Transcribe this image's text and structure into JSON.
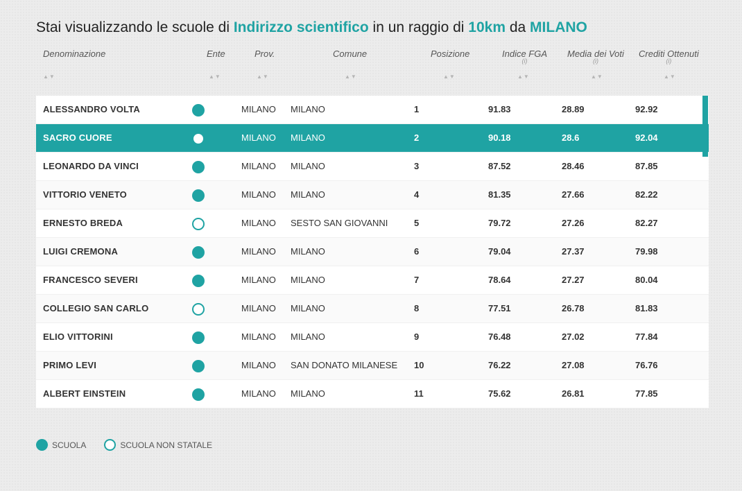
{
  "title": {
    "prefix": "Stai visualizzando le scuole di ",
    "indirizzo": "Indirizzo scientifico",
    "middle": " in un raggio di ",
    "raggio": "10km",
    "connector": " da ",
    "citta": "MILANO"
  },
  "columns": {
    "denominazione": "Denominazione",
    "ente": "Ente",
    "prov": "Prov.",
    "comune": "Comune",
    "posizione": "Posizione",
    "fga": "Indice FGA",
    "media": "Media dei Voti",
    "crediti": "Crediti Ottenuti",
    "info": "(i)",
    "sort_up": "▲",
    "sort_down": "▼"
  },
  "rows": [
    {
      "name": "ALESSANDRO VOLTA",
      "ente": "scuola",
      "prov": "MILANO",
      "comune": "MILANO",
      "pos": "1",
      "fga": "91.83",
      "media": "28.89",
      "crediti": "92.92"
    },
    {
      "name": "SACRO CUORE",
      "ente": "scuola",
      "prov": "MILANO",
      "comune": "MILANO",
      "pos": "2",
      "fga": "90.18",
      "media": "28.6",
      "crediti": "92.04"
    },
    {
      "name": "LEONARDO DA VINCI",
      "ente": "scuola",
      "prov": "MILANO",
      "comune": "MILANO",
      "pos": "3",
      "fga": "87.52",
      "media": "28.46",
      "crediti": "87.85"
    },
    {
      "name": "VITTORIO VENETO",
      "ente": "scuola",
      "prov": "MILANO",
      "comune": "MILANO",
      "pos": "4",
      "fga": "81.35",
      "media": "27.66",
      "crediti": "82.22"
    },
    {
      "name": "ERNESTO BREDA",
      "ente": "non-statale",
      "prov": "MILANO",
      "comune": "SESTO SAN GIOVANNI",
      "pos": "5",
      "fga": "79.72",
      "media": "27.26",
      "crediti": "82.27"
    },
    {
      "name": "LUIGI CREMONA",
      "ente": "scuola",
      "prov": "MILANO",
      "comune": "MILANO",
      "pos": "6",
      "fga": "79.04",
      "media": "27.37",
      "crediti": "79.98"
    },
    {
      "name": "FRANCESCO SEVERI",
      "ente": "scuola",
      "prov": "MILANO",
      "comune": "MILANO",
      "pos": "7",
      "fga": "78.64",
      "media": "27.27",
      "crediti": "80.04"
    },
    {
      "name": "COLLEGIO SAN CARLO",
      "ente": "non-statale",
      "prov": "MILANO",
      "comune": "MILANO",
      "pos": "8",
      "fga": "77.51",
      "media": "26.78",
      "crediti": "81.83"
    },
    {
      "name": "ELIO VITTORINI",
      "ente": "scuola",
      "prov": "MILANO",
      "comune": "MILANO",
      "pos": "9",
      "fga": "76.48",
      "media": "27.02",
      "crediti": "77.84"
    },
    {
      "name": "PRIMO LEVI",
      "ente": "scuola",
      "prov": "MILANO",
      "comune": "SAN DONATO MILANESE",
      "pos": "10",
      "fga": "76.22",
      "media": "27.08",
      "crediti": "76.76"
    },
    {
      "name": "ALBERT EINSTEIN",
      "ente": "scuola",
      "prov": "MILANO",
      "comune": "MILANO",
      "pos": "11",
      "fga": "75.62",
      "media": "26.81",
      "crediti": "77.85"
    }
  ],
  "selected_row": 1,
  "legend": {
    "scuola": "SCUOLA",
    "non_statale": "SCUOLA NON STATALE"
  },
  "colors": {
    "accent": "#1fa3a3"
  }
}
